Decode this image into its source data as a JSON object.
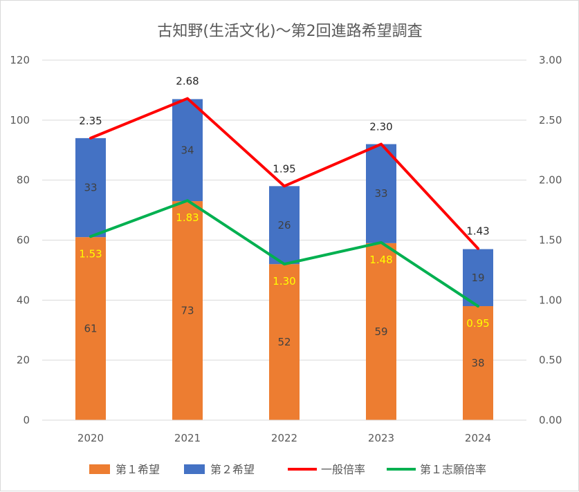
{
  "chart_data": {
    "type": "bar",
    "title": "古知野(生活文化)～第2回進路希望調査",
    "categories": [
      "2020",
      "2021",
      "2022",
      "2023",
      "2024"
    ],
    "series": [
      {
        "name": "第１希望",
        "kind": "stacked-bar",
        "axis": "left",
        "color": "#ed7d31",
        "values": [
          61,
          73,
          52,
          59,
          38
        ]
      },
      {
        "name": "第２希望",
        "kind": "stacked-bar",
        "axis": "left",
        "color": "#4472c4",
        "values": [
          33,
          34,
          26,
          33,
          19
        ]
      },
      {
        "name": "一般倍率",
        "kind": "line",
        "axis": "right",
        "color": "#ff0000",
        "values": [
          2.35,
          2.68,
          1.95,
          2.3,
          1.43
        ]
      },
      {
        "name": "第１志願倍率",
        "kind": "line",
        "axis": "right",
        "color": "#00b050",
        "values": [
          1.53,
          1.83,
          1.3,
          1.48,
          0.95
        ]
      }
    ],
    "y_left": {
      "min": 0,
      "max": 120,
      "step": 20,
      "ticks": [
        "0",
        "20",
        "40",
        "60",
        "80",
        "100",
        "120"
      ]
    },
    "y_right": {
      "min": 0,
      "max": 3.0,
      "step": 0.5,
      "ticks": [
        "0.00",
        "0.50",
        "1.00",
        "1.50",
        "2.00",
        "2.50",
        "3.00"
      ]
    },
    "data_labels": {
      "first_wish": [
        "61",
        "73",
        "52",
        "59",
        "38"
      ],
      "second_wish": [
        "33",
        "34",
        "26",
        "33",
        "19"
      ],
      "general_ratio": [
        "2.35",
        "2.68",
        "1.95",
        "2.30",
        "1.43"
      ],
      "first_choice_ratio": [
        "1.53",
        "1.83",
        "1.30",
        "1.48",
        "0.95"
      ]
    },
    "grid": true,
    "legend_position": "bottom"
  }
}
